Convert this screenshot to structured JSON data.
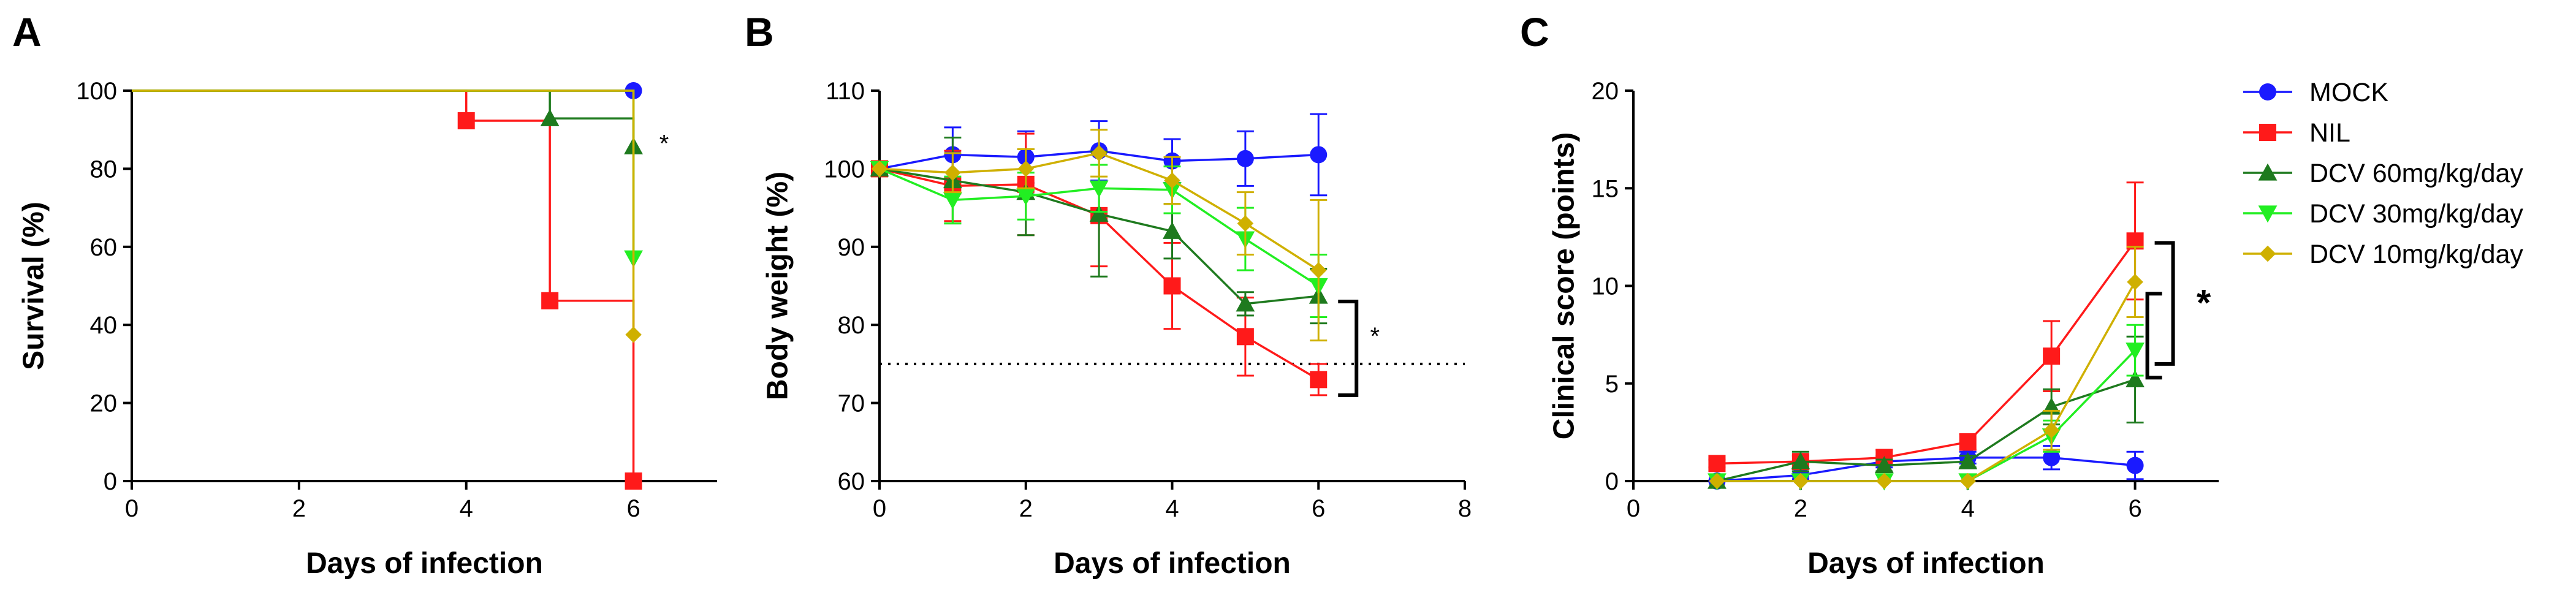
{
  "colors": {
    "MOCK": "#1a1aff",
    "NIL": "#ff1a1a",
    "DCV60": "#1e7a1e",
    "DCV30": "#22ee22",
    "DCV10": "#cfb000"
  },
  "legend": [
    {
      "key": "MOCK",
      "label": "MOCK",
      "marker": "circle"
    },
    {
      "key": "NIL",
      "label": "NIL",
      "marker": "square"
    },
    {
      "key": "DCV60",
      "label": "DCV 60mg/kg/day",
      "marker": "triangle-up"
    },
    {
      "key": "DCV30",
      "label": "DCV 30mg/kg/day",
      "marker": "triangle-down"
    },
    {
      "key": "DCV10",
      "label": "DCV 10mg/kg/day",
      "marker": "diamond"
    }
  ],
  "chart_data": [
    {
      "id": "A",
      "letter": "A",
      "type": "line",
      "step": true,
      "xlabel": "Days of infection",
      "ylabel": "Survival (%)",
      "xlim": [
        0,
        7
      ],
      "ylim": [
        0,
        100
      ],
      "xticks": [
        0,
        2,
        4,
        6
      ],
      "yticks": [
        0,
        20,
        40,
        60,
        80,
        100
      ],
      "significance": "*",
      "series": [
        {
          "key": "MOCK",
          "points": [
            [
              0,
              100
            ],
            [
              6,
              100
            ]
          ],
          "markers": [
            [
              6,
              100
            ]
          ]
        },
        {
          "key": "NIL",
          "points": [
            [
              0,
              100
            ],
            [
              4,
              100
            ],
            [
              4,
              92.3
            ],
            [
              5,
              92.3
            ],
            [
              5,
              46.2
            ],
            [
              6,
              46.2
            ],
            [
              6,
              0
            ]
          ],
          "markers": [
            [
              4,
              92.3
            ],
            [
              5,
              46.2
            ],
            [
              6,
              0
            ]
          ]
        },
        {
          "key": "DCV60",
          "points": [
            [
              0,
              100
            ],
            [
              5,
              100
            ],
            [
              5,
              92.9
            ],
            [
              6,
              92.9
            ],
            [
              6,
              85.7
            ]
          ],
          "markers": [
            [
              5,
              92.9
            ],
            [
              6,
              85.7
            ]
          ]
        },
        {
          "key": "DCV30",
          "points": [
            [
              0,
              100
            ],
            [
              6,
              100
            ],
            [
              6,
              57.1
            ]
          ],
          "markers": [
            [
              6,
              57.1
            ]
          ]
        },
        {
          "key": "DCV10",
          "points": [
            [
              0,
              100
            ],
            [
              6,
              100
            ],
            [
              6,
              37.5
            ]
          ],
          "markers": [
            [
              6,
              37.5
            ]
          ]
        }
      ]
    },
    {
      "id": "B",
      "letter": "B",
      "type": "line",
      "xlabel": "Days of infection",
      "ylabel": "Body weight (%)",
      "xlim": [
        0,
        8
      ],
      "ylim": [
        60,
        110
      ],
      "xticks": [
        0,
        2,
        4,
        6,
        8
      ],
      "yticks": [
        60,
        70,
        80,
        90,
        100,
        110
      ],
      "threshold": 75,
      "significance": "*",
      "series": [
        {
          "key": "MOCK",
          "x": [
            0,
            1,
            2,
            3,
            4,
            5,
            6
          ],
          "y": [
            100,
            101.8,
            101.5,
            102.3,
            101.0,
            101.3,
            101.8
          ],
          "err": [
            0,
            3.5,
            3.3,
            3.8,
            2.8,
            3.5,
            5.2
          ]
        },
        {
          "key": "NIL",
          "x": [
            0,
            1,
            2,
            3,
            4,
            5,
            6
          ],
          "y": [
            100,
            97.8,
            98.0,
            94.0,
            85.0,
            78.5,
            73.0
          ],
          "err": [
            0,
            4.5,
            6.5,
            6.5,
            5.5,
            5.0,
            2.0
          ]
        },
        {
          "key": "DCV60",
          "x": [
            0,
            1,
            2,
            3,
            4,
            5,
            6
          ],
          "y": [
            100,
            98.5,
            97.0,
            94.2,
            92.0,
            82.7,
            83.7
          ],
          "err": [
            0,
            5.5,
            5.5,
            8.0,
            3.5,
            1.5,
            3.5
          ]
        },
        {
          "key": "DCV30",
          "x": [
            0,
            1,
            2,
            3,
            4,
            5,
            6
          ],
          "y": [
            100,
            96.0,
            96.5,
            97.5,
            97.3,
            91.0,
            85.0
          ],
          "err": [
            0,
            3.0,
            3.0,
            3.0,
            3.0,
            4.0,
            4.0
          ]
        },
        {
          "key": "DCV10",
          "x": [
            0,
            1,
            2,
            3,
            4,
            5,
            6
          ],
          "y": [
            100,
            99.5,
            100.0,
            102.0,
            98.5,
            93.0,
            87.0
          ],
          "err": [
            0,
            2.5,
            2.5,
            3.0,
            3.0,
            4.0,
            9.0
          ]
        }
      ]
    },
    {
      "id": "C",
      "letter": "C",
      "type": "line",
      "xlabel": "Days of infection",
      "ylabel": "Clinical score (points)",
      "xlim": [
        0,
        7
      ],
      "ylim": [
        0,
        20
      ],
      "xticks": [
        0,
        2,
        4,
        6
      ],
      "yticks": [
        0,
        5,
        10,
        15,
        20
      ],
      "significance": "*",
      "series": [
        {
          "key": "MOCK",
          "x": [
            1,
            2,
            3,
            4,
            5,
            6
          ],
          "y": [
            0,
            0.3,
            1.0,
            1.2,
            1.2,
            0.8
          ],
          "err": [
            0,
            0.2,
            0.3,
            0.3,
            0.6,
            0.7
          ]
        },
        {
          "key": "NIL",
          "x": [
            1,
            2,
            3,
            4,
            5,
            6
          ],
          "y": [
            0.9,
            1.0,
            1.2,
            2.0,
            6.4,
            12.3
          ],
          "err": [
            0.2,
            0.3,
            0.4,
            0.4,
            1.8,
            3.0
          ]
        },
        {
          "key": "DCV60",
          "x": [
            1,
            2,
            3,
            4,
            5,
            6
          ],
          "y": [
            0,
            1.0,
            0.8,
            1.0,
            3.8,
            5.2
          ],
          "err": [
            0,
            0.5,
            0.3,
            0.3,
            0.9,
            2.2
          ]
        },
        {
          "key": "DCV30",
          "x": [
            1,
            2,
            3,
            4,
            5,
            6
          ],
          "y": [
            0,
            0,
            0,
            0,
            2.3,
            6.7
          ],
          "err": [
            0,
            0,
            0,
            0,
            0.8,
            1.3
          ]
        },
        {
          "key": "DCV10",
          "x": [
            1,
            2,
            3,
            4,
            5,
            6
          ],
          "y": [
            0,
            0,
            0,
            0,
            2.6,
            10.2
          ],
          "err": [
            0,
            0,
            0,
            0,
            1.0,
            1.8
          ]
        }
      ]
    }
  ]
}
